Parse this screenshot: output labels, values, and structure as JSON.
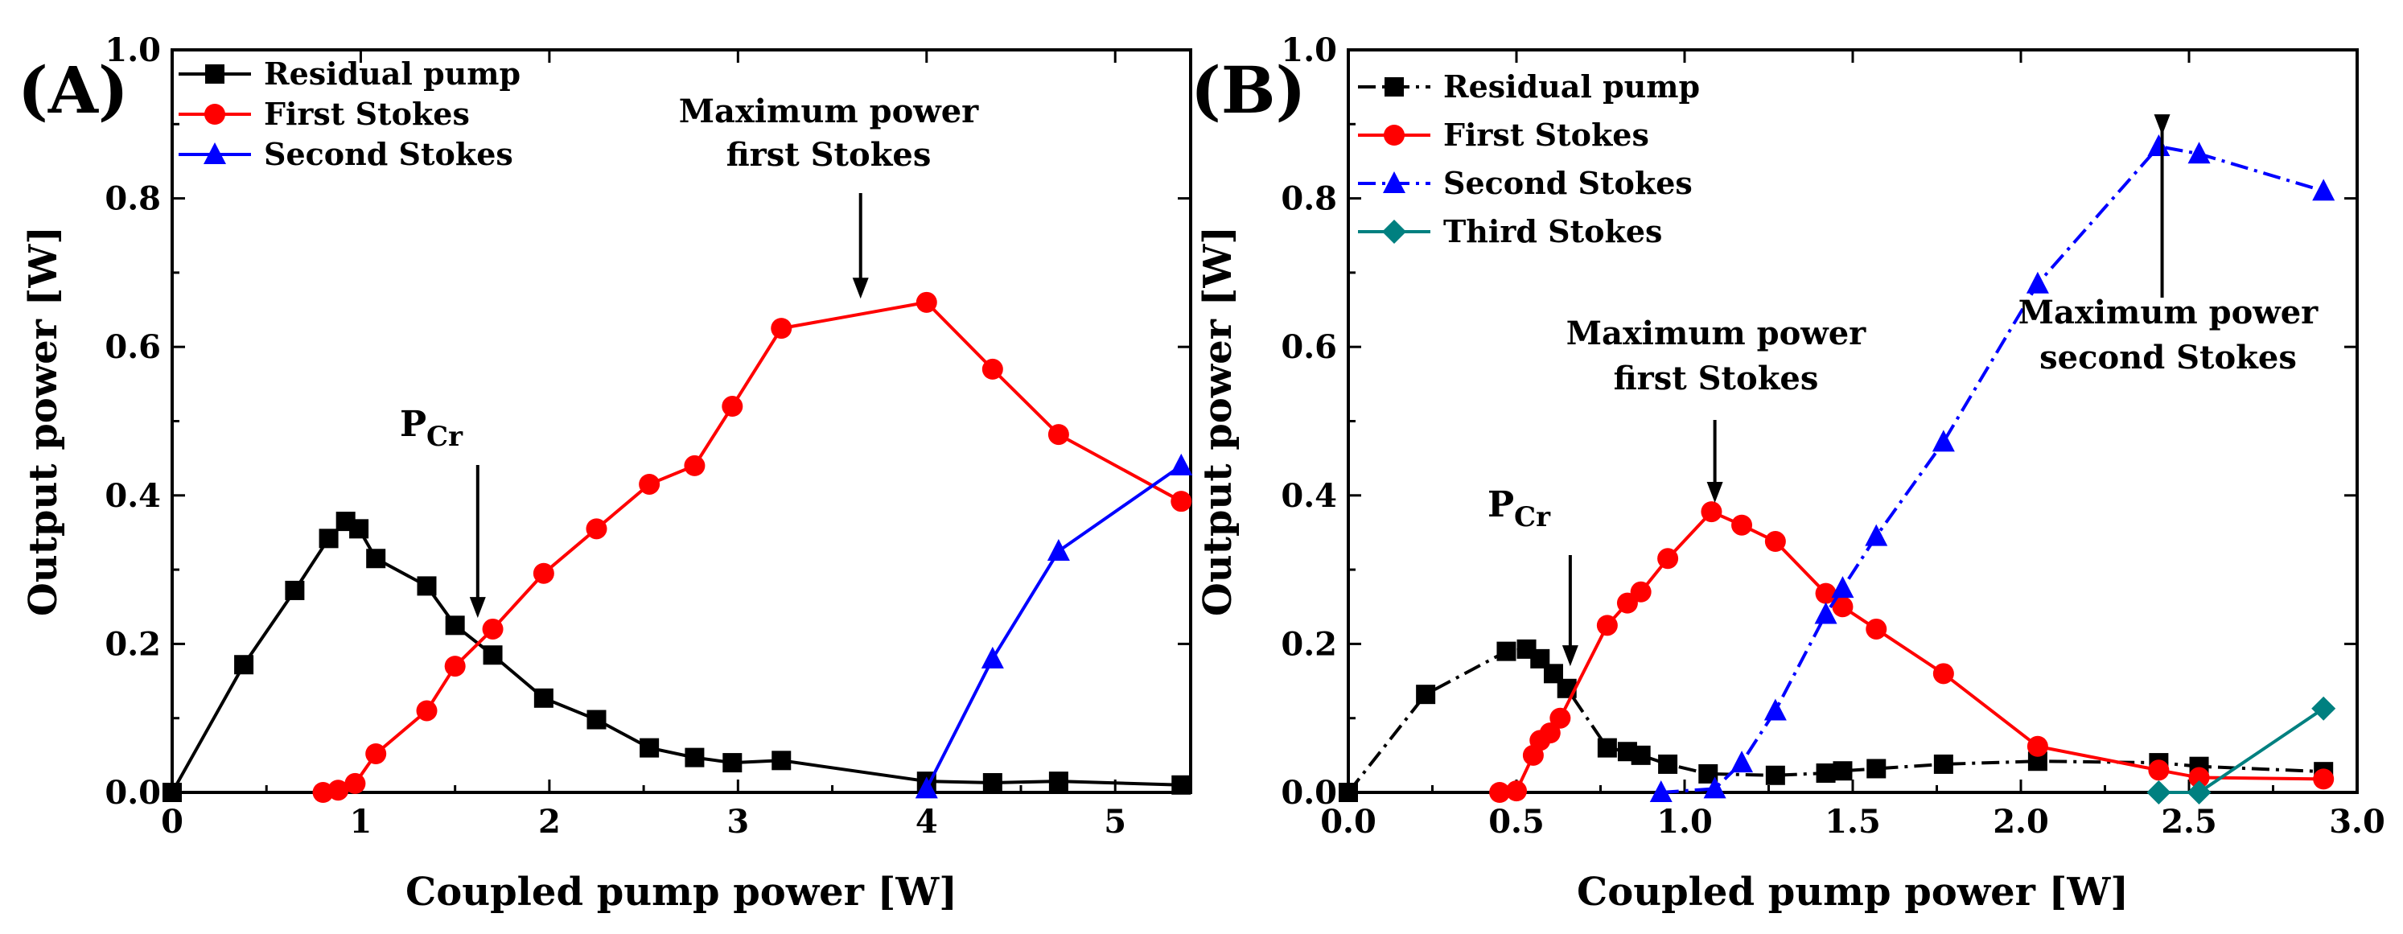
{
  "figure": {
    "panels": [
      {
        "label": "(A)",
        "xlabel": "Coupled pump power [W]",
        "ylabel": "Output power [W]",
        "annotations": [
          {
            "text": "Maximum power",
            "arrow_x": 3.65,
            "arrow_y": 0.665
          },
          {
            "text": "first Stokes"
          },
          {
            "text": "P",
            "sub": "Cr",
            "arrow_x": 1.62,
            "arrow_y": 0.235
          }
        ]
      },
      {
        "label": "(B)",
        "xlabel": "Coupled pump power [W]",
        "ylabel": "Output power [W]",
        "annotations": [
          {
            "text": "Maximum power",
            "arrow_x": 1.09,
            "arrow_y": 0.39
          },
          {
            "text": "first Stokes"
          },
          {
            "text": "P",
            "sub": "Cr",
            "arrow_x": 0.66,
            "arrow_y": 0.17
          },
          {
            "text": "Maximum power",
            "arrow_x": 2.42,
            "arrow_y": 0.885
          },
          {
            "text": "second Stokes"
          }
        ]
      }
    ]
  },
  "chart_data": [
    {
      "type": "line",
      "title": "",
      "xlabel": "Coupled pump power [W]",
      "ylabel": "Output power [W]",
      "xlim": [
        0,
        5.4
      ],
      "ylim": [
        0,
        1.0
      ],
      "xticks": [
        0,
        1,
        2,
        3,
        4,
        5
      ],
      "xtick_labels": [
        "0",
        "1",
        "2",
        "3",
        "4",
        "5"
      ],
      "yticks": [
        0.0,
        0.2,
        0.4,
        0.6,
        0.8,
        1.0
      ],
      "ytick_labels": [
        "0.0",
        "0.2",
        "0.4",
        "0.6",
        "0.8",
        "1.0"
      ],
      "grid": false,
      "legend_position": "top-left",
      "series": [
        {
          "name": "Residual pump",
          "color": "#000000",
          "marker": "square",
          "dash": "solid",
          "points": [
            [
              0.0,
              0.0
            ],
            [
              0.38,
              0.172
            ],
            [
              0.65,
              0.272
            ],
            [
              0.83,
              0.342
            ],
            [
              0.92,
              0.365
            ],
            [
              0.99,
              0.355
            ],
            [
              1.08,
              0.315
            ],
            [
              1.35,
              0.278
            ],
            [
              1.5,
              0.225
            ],
            [
              1.7,
              0.185
            ],
            [
              1.97,
              0.127
            ],
            [
              2.25,
              0.098
            ],
            [
              2.53,
              0.06
            ],
            [
              2.77,
              0.047
            ],
            [
              2.97,
              0.04
            ],
            [
              3.23,
              0.043
            ],
            [
              4.0,
              0.015
            ],
            [
              4.35,
              0.013
            ],
            [
              4.7,
              0.015
            ],
            [
              5.35,
              0.01
            ]
          ]
        },
        {
          "name": "First Stokes",
          "color": "#ff0000",
          "marker": "circle",
          "dash": "solid",
          "points": [
            [
              0.8,
              0.0
            ],
            [
              0.88,
              0.003
            ],
            [
              0.97,
              0.012
            ],
            [
              1.08,
              0.052
            ],
            [
              1.35,
              0.11
            ],
            [
              1.5,
              0.17
            ],
            [
              1.7,
              0.22
            ],
            [
              1.97,
              0.295
            ],
            [
              2.25,
              0.355
            ],
            [
              2.53,
              0.415
            ],
            [
              2.77,
              0.44
            ],
            [
              2.97,
              0.52
            ],
            [
              3.23,
              0.625
            ],
            [
              4.0,
              0.66
            ],
            [
              4.35,
              0.57
            ],
            [
              4.7,
              0.482
            ],
            [
              5.35,
              0.392
            ]
          ]
        },
        {
          "name": "Second Stokes",
          "color": "#0000ff",
          "marker": "triangle",
          "dash": "solid",
          "points": [
            [
              4.0,
              0.005
            ],
            [
              4.35,
              0.18
            ],
            [
              4.7,
              0.325
            ],
            [
              5.35,
              0.44
            ]
          ]
        }
      ]
    },
    {
      "type": "line",
      "title": "",
      "xlabel": "Coupled pump power [W]",
      "ylabel": "Output power [W]",
      "xlim": [
        0,
        3.0
      ],
      "ylim": [
        0,
        1.0
      ],
      "xticks": [
        0.0,
        0.5,
        1.0,
        1.5,
        2.0,
        2.5,
        3.0
      ],
      "xtick_labels": [
        "0.0",
        "0.5",
        "1.0",
        "1.5",
        "2.0",
        "2.5",
        "3.0"
      ],
      "yticks": [
        0.0,
        0.2,
        0.4,
        0.6,
        0.8,
        1.0
      ],
      "ytick_labels": [
        "0.0",
        "0.2",
        "0.4",
        "0.6",
        "0.8",
        "1.0"
      ],
      "grid": false,
      "legend_position": "top-left",
      "series": [
        {
          "name": "Residual pump",
          "color": "#000000",
          "marker": "square",
          "dash": "dashdot",
          "points": [
            [
              0.0,
              0.0
            ],
            [
              0.23,
              0.132
            ],
            [
              0.47,
              0.19
            ],
            [
              0.53,
              0.193
            ],
            [
              0.57,
              0.18
            ],
            [
              0.61,
              0.16
            ],
            [
              0.65,
              0.14
            ],
            [
              0.77,
              0.06
            ],
            [
              0.83,
              0.055
            ],
            [
              0.87,
              0.05
            ],
            [
              0.95,
              0.038
            ],
            [
              1.07,
              0.025
            ],
            [
              1.27,
              0.023
            ],
            [
              1.42,
              0.026
            ],
            [
              1.47,
              0.029
            ],
            [
              1.57,
              0.032
            ],
            [
              1.77,
              0.038
            ],
            [
              2.05,
              0.042
            ],
            [
              2.41,
              0.04
            ],
            [
              2.53,
              0.035
            ],
            [
              2.9,
              0.028
            ]
          ]
        },
        {
          "name": "First Stokes",
          "color": "#ff0000",
          "marker": "circle",
          "dash": "solid",
          "points": [
            [
              0.45,
              0.0
            ],
            [
              0.5,
              0.002
            ],
            [
              0.55,
              0.05
            ],
            [
              0.57,
              0.07
            ],
            [
              0.6,
              0.08
            ],
            [
              0.63,
              0.1
            ],
            [
              0.77,
              0.225
            ],
            [
              0.83,
              0.255
            ],
            [
              0.87,
              0.27
            ],
            [
              0.95,
              0.315
            ],
            [
              1.08,
              0.378
            ],
            [
              1.17,
              0.36
            ],
            [
              1.27,
              0.338
            ],
            [
              1.42,
              0.268
            ],
            [
              1.47,
              0.25
            ],
            [
              1.57,
              0.22
            ],
            [
              1.77,
              0.16
            ],
            [
              2.05,
              0.062
            ],
            [
              2.41,
              0.03
            ],
            [
              2.53,
              0.02
            ],
            [
              2.9,
              0.018
            ]
          ]
        },
        {
          "name": "Second Stokes",
          "color": "#0000ff",
          "marker": "triangle",
          "dash": "dashdot",
          "points": [
            [
              0.93,
              0.0
            ],
            [
              1.09,
              0.005
            ],
            [
              1.17,
              0.04
            ],
            [
              1.27,
              0.11
            ],
            [
              1.42,
              0.24
            ],
            [
              1.47,
              0.275
            ],
            [
              1.57,
              0.345
            ],
            [
              1.77,
              0.472
            ],
            [
              2.05,
              0.685
            ],
            [
              2.41,
              0.87
            ],
            [
              2.53,
              0.86
            ],
            [
              2.9,
              0.81
            ]
          ]
        },
        {
          "name": "Third Stokes",
          "color": "#008080",
          "marker": "diamond",
          "dash": "solid",
          "points": [
            [
              2.41,
              0.0
            ],
            [
              2.53,
              0.0
            ],
            [
              2.9,
              0.113
            ]
          ]
        }
      ]
    }
  ]
}
